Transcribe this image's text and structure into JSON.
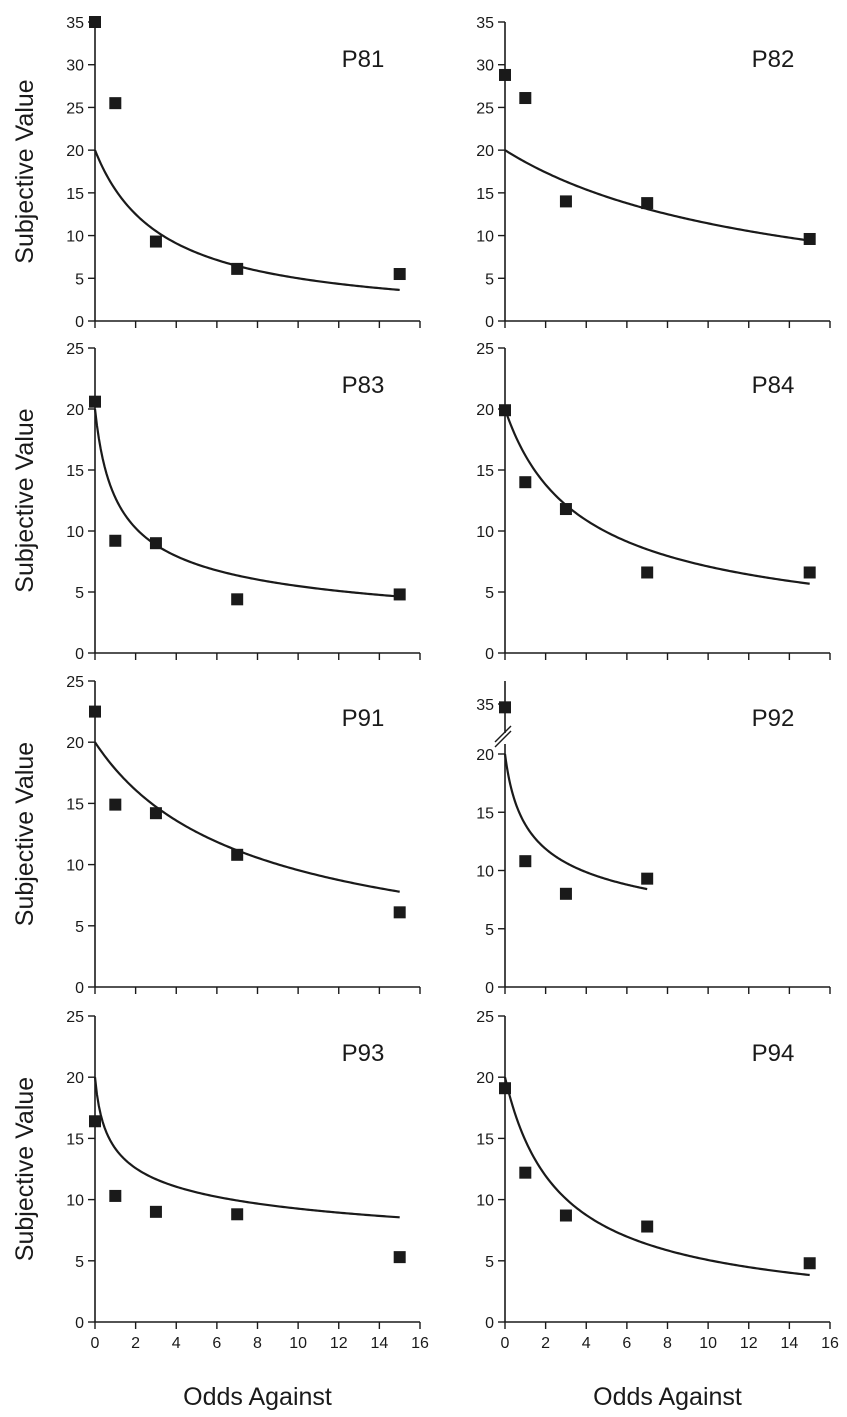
{
  "chart_data": [
    {
      "type": "scatter",
      "title": "P81",
      "ylabel": "Subjective Value",
      "xlabel": "",
      "ylim": [
        0,
        35
      ],
      "y_ticks": [
        "0",
        "5",
        "10",
        "15",
        "20",
        "25",
        "30",
        "35"
      ],
      "xlim": [
        0,
        16
      ],
      "points": {
        "x": [
          0,
          1,
          3,
          7,
          15
        ],
        "y": [
          35,
          25.5,
          9.3,
          6.1,
          5.5
        ]
      },
      "fit": {
        "a": 20,
        "h": 0.3,
        "s": 1,
        "xmax": 15
      }
    },
    {
      "type": "scatter",
      "title": "P82",
      "ylabel": "",
      "xlabel": "",
      "ylim": [
        0,
        35
      ],
      "y_ticks": [
        "0",
        "5",
        "10",
        "15",
        "20",
        "25",
        "30",
        "35"
      ],
      "xlim": [
        0,
        16
      ],
      "points": {
        "x": [
          0,
          1,
          3,
          7,
          15
        ],
        "y": [
          28.8,
          26.1,
          14,
          13.8,
          9.6
        ]
      },
      "fit": {
        "a": 20,
        "h": 0.075,
        "s": 1,
        "xmax": 15
      }
    },
    {
      "type": "scatter",
      "title": "P83",
      "ylabel": "Subjective Value",
      "xlabel": "",
      "ylim": [
        0,
        25
      ],
      "y_ticks": [
        "0",
        "5",
        "10",
        "15",
        "20",
        "25"
      ],
      "xlim": [
        0,
        16
      ],
      "points": {
        "x": [
          0,
          1,
          3,
          7,
          15
        ],
        "y": [
          20.6,
          9.2,
          9,
          4.4,
          4.8
        ]
      },
      "fit": {
        "a": 20,
        "h": 1.79,
        "s": 0.44,
        "xmax": 15
      }
    },
    {
      "type": "scatter",
      "title": "P84",
      "ylabel": "",
      "xlabel": "",
      "ylim": [
        0,
        25
      ],
      "y_ticks": [
        "0",
        "5",
        "10",
        "15",
        "20",
        "25"
      ],
      "xlim": [
        0,
        16
      ],
      "points": {
        "x": [
          0,
          1,
          3,
          7,
          15
        ],
        "y": [
          19.9,
          14,
          11.8,
          6.6,
          6.6
        ]
      },
      "fit": {
        "a": 20,
        "h": 0.37,
        "s": 0.67,
        "xmax": 15
      }
    },
    {
      "type": "scatter",
      "title": "P91",
      "ylabel": "Subjective Value",
      "xlabel": "",
      "ylim": [
        0,
        25
      ],
      "y_ticks": [
        "0",
        "5",
        "10",
        "15",
        "20",
        "25"
      ],
      "xlim": [
        0,
        16
      ],
      "points": {
        "x": [
          0,
          1,
          3,
          7,
          15
        ],
        "y": [
          22.5,
          14.9,
          14.2,
          10.8,
          6.1
        ]
      },
      "fit": {
        "a": 20,
        "h": 0.168,
        "s": 0.75,
        "xmax": 15
      }
    },
    {
      "type": "scatter",
      "title": "P92",
      "ylabel": "",
      "xlabel": "",
      "ylim": [
        0,
        25
      ],
      "y_ticks": [
        "0",
        "5",
        "10",
        "15",
        "20",
        "35"
      ],
      "axis_break": true,
      "xlim": [
        0,
        16
      ],
      "points": {
        "x": [
          1,
          3,
          7
        ],
        "y": [
          10.8,
          8,
          9.3
        ]
      },
      "points_above_break": {
        "x": [
          0
        ],
        "y": [
          34
        ]
      },
      "fit": {
        "a": 20,
        "h": 2.2,
        "s": 0.31,
        "xmax": 7
      }
    },
    {
      "type": "scatter",
      "title": "P93",
      "ylabel": "Subjective Value",
      "xlabel": "Odds Against",
      "ylim": [
        0,
        25
      ],
      "y_ticks": [
        "0",
        "5",
        "10",
        "15",
        "20",
        "25"
      ],
      "xlim": [
        0,
        16
      ],
      "x_ticks": [
        "0",
        "2",
        "4",
        "6",
        "8",
        "10",
        "12",
        "14",
        "16"
      ],
      "points": {
        "x": [
          0,
          1,
          3,
          7,
          15
        ],
        "y": [
          16.4,
          10.3,
          9,
          8.8,
          5.3
        ]
      },
      "fit": {
        "a": 20,
        "h": 4.6,
        "s": 0.2,
        "xmax": 15
      }
    },
    {
      "type": "scatter",
      "title": "P94",
      "ylabel": "",
      "xlabel": "Odds Against",
      "ylim": [
        0,
        25
      ],
      "y_ticks": [
        "0",
        "5",
        "10",
        "15",
        "20",
        "25"
      ],
      "xlim": [
        0,
        16
      ],
      "x_ticks": [
        "0",
        "2",
        "4",
        "6",
        "8",
        "10",
        "12",
        "14",
        "16"
      ],
      "points": {
        "x": [
          0,
          1,
          3,
          7,
          15
        ],
        "y": [
          19.1,
          12.2,
          8.7,
          7.8,
          4.8
        ]
      },
      "fit": {
        "a": 20,
        "h": 0.445,
        "s": 0.81,
        "xmax": 15
      }
    }
  ]
}
